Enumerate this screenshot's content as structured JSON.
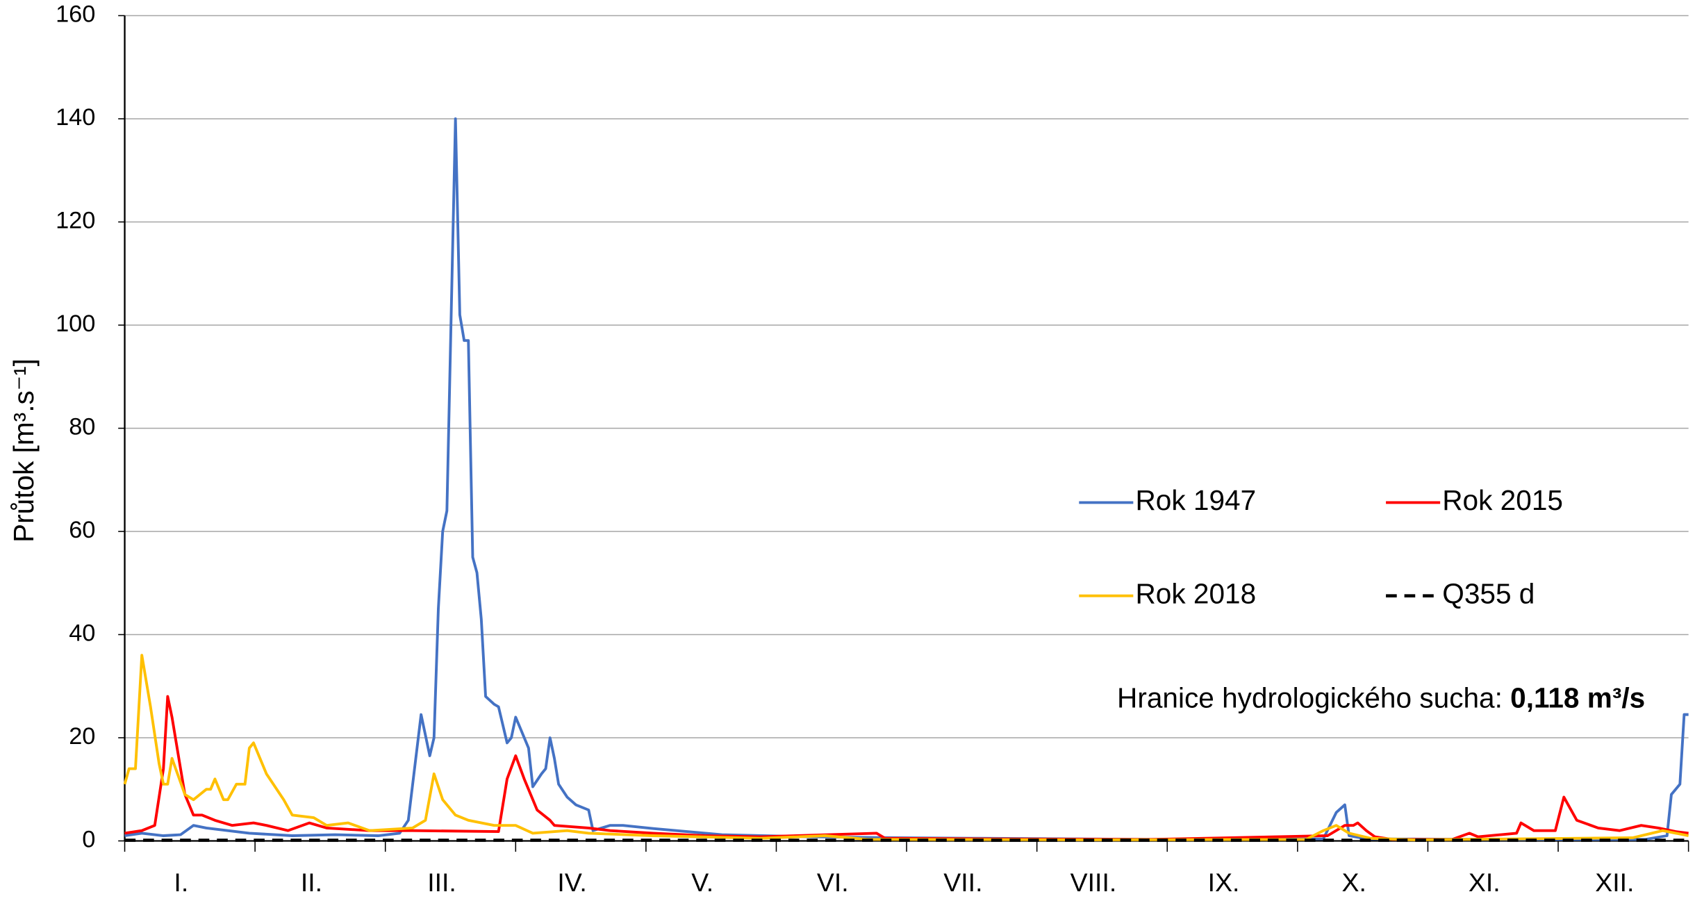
{
  "chart_data": {
    "type": "line",
    "y_label": "Průtok  [m³.s⁻¹]",
    "categories": [
      "I.",
      "II.",
      "III.",
      "IV.",
      "V.",
      "VI.",
      "VII.",
      "VIII.",
      "IX.",
      "X.",
      "XI.",
      "XII."
    ],
    "xlim": [
      1,
      365
    ],
    "ylim": [
      0,
      160
    ],
    "yticks": [
      0,
      20,
      40,
      60,
      80,
      100,
      120,
      140,
      160
    ],
    "grid": true,
    "annotation": {
      "text": "Hranice hydrologického sucha: ",
      "value_text": "0,118 m³/s"
    },
    "series": [
      {
        "name": "Rok 1947",
        "color": "#4472c4",
        "x": [
          1,
          5,
          10,
          14,
          17,
          20,
          25,
          30,
          40,
          50,
          60,
          65,
          67,
          70,
          72,
          73,
          74,
          75,
          76,
          78,
          79,
          80,
          81,
          82,
          83,
          84,
          85,
          87,
          88,
          90,
          91,
          92,
          93,
          95,
          96,
          98,
          99,
          100,
          101,
          102,
          104,
          106,
          109,
          110,
          114,
          117,
          124,
          140,
          160,
          180,
          200,
          240,
          280,
          283,
          285,
          286,
          290,
          320,
          355,
          360,
          361,
          363,
          364,
          365
        ],
        "values": [
          1,
          1.5,
          1,
          1.2,
          3,
          2.5,
          2,
          1.5,
          1,
          1.2,
          1,
          1.5,
          4,
          24.5,
          16.5,
          20,
          45,
          60,
          64,
          140,
          102,
          97,
          97,
          55,
          52,
          43,
          28,
          26.5,
          26,
          19,
          20,
          24,
          22,
          18,
          10.5,
          13,
          14,
          20,
          16,
          11,
          8.5,
          7,
          6,
          2,
          3,
          3,
          2.4,
          1.2,
          0.8,
          0.6,
          0.5,
          0.3,
          0.4,
          5.5,
          7,
          1,
          0.4,
          0.3,
          0.3,
          1,
          9,
          11,
          24.5,
          24.5
        ]
      },
      {
        "name": "Rok 2015",
        "color": "#ff0000",
        "x": [
          1,
          5,
          8,
          10,
          11,
          12,
          14,
          15,
          17,
          19,
          22,
          26,
          31,
          34,
          39,
          44,
          48,
          58,
          68,
          88,
          90,
          92,
          94,
          97,
          100,
          101,
          109,
          114,
          124,
          136,
          149,
          176,
          178,
          200,
          240,
          281,
          285,
          287,
          288,
          290,
          292,
          296,
          310,
          314,
          316,
          325,
          326,
          329,
          334,
          336,
          339,
          344,
          349,
          354,
          358,
          362,
          365
        ],
        "values": [
          1.5,
          2,
          3,
          14,
          28,
          24,
          14,
          9,
          5,
          5,
          4,
          3,
          3.5,
          3,
          2,
          3.5,
          2.5,
          2,
          2,
          1.8,
          12,
          16.5,
          12,
          6,
          4,
          3,
          2.5,
          2,
          1.5,
          1,
          0.8,
          1.5,
          0.5,
          0.4,
          0.3,
          1,
          3,
          3,
          3.5,
          2,
          0.8,
          0.3,
          0.3,
          1.5,
          0.8,
          1.5,
          3.5,
          2,
          2,
          8.5,
          4,
          2.5,
          2,
          3,
          2.5,
          1.8,
          1.5
        ]
      },
      {
        "name": "Rok 2018",
        "color": "#ffc000",
        "x": [
          1,
          2,
          3.5,
          5,
          7,
          9,
          10,
          11,
          12,
          15,
          17,
          20,
          21,
          22,
          24,
          25,
          27,
          29,
          30,
          31,
          34,
          38,
          40,
          45,
          48,
          53,
          58,
          68,
          71,
          73,
          75,
          78,
          81,
          87,
          92,
          96,
          104,
          109,
          124,
          149,
          164,
          174,
          225,
          276,
          280,
          283,
          286,
          291,
          301,
          352,
          359,
          365
        ],
        "values": [
          11,
          14,
          14,
          36,
          26,
          15,
          11,
          11,
          16,
          9,
          8,
          10,
          10,
          12,
          8,
          8,
          11,
          11,
          18,
          19,
          13,
          8,
          5,
          4.5,
          3,
          3.5,
          2,
          2.5,
          4,
          13,
          8,
          5,
          4,
          3,
          3,
          1.5,
          2,
          1.5,
          1,
          0.5,
          1,
          0.3,
          0.2,
          0.3,
          2,
          3,
          1.5,
          0.5,
          0.2,
          0.6,
          2,
          1
        ]
      },
      {
        "name": "Q355 d",
        "color": "#000000",
        "dashed": true,
        "x": [
          1,
          365
        ],
        "values": [
          0.118,
          0.118
        ]
      }
    ]
  }
}
